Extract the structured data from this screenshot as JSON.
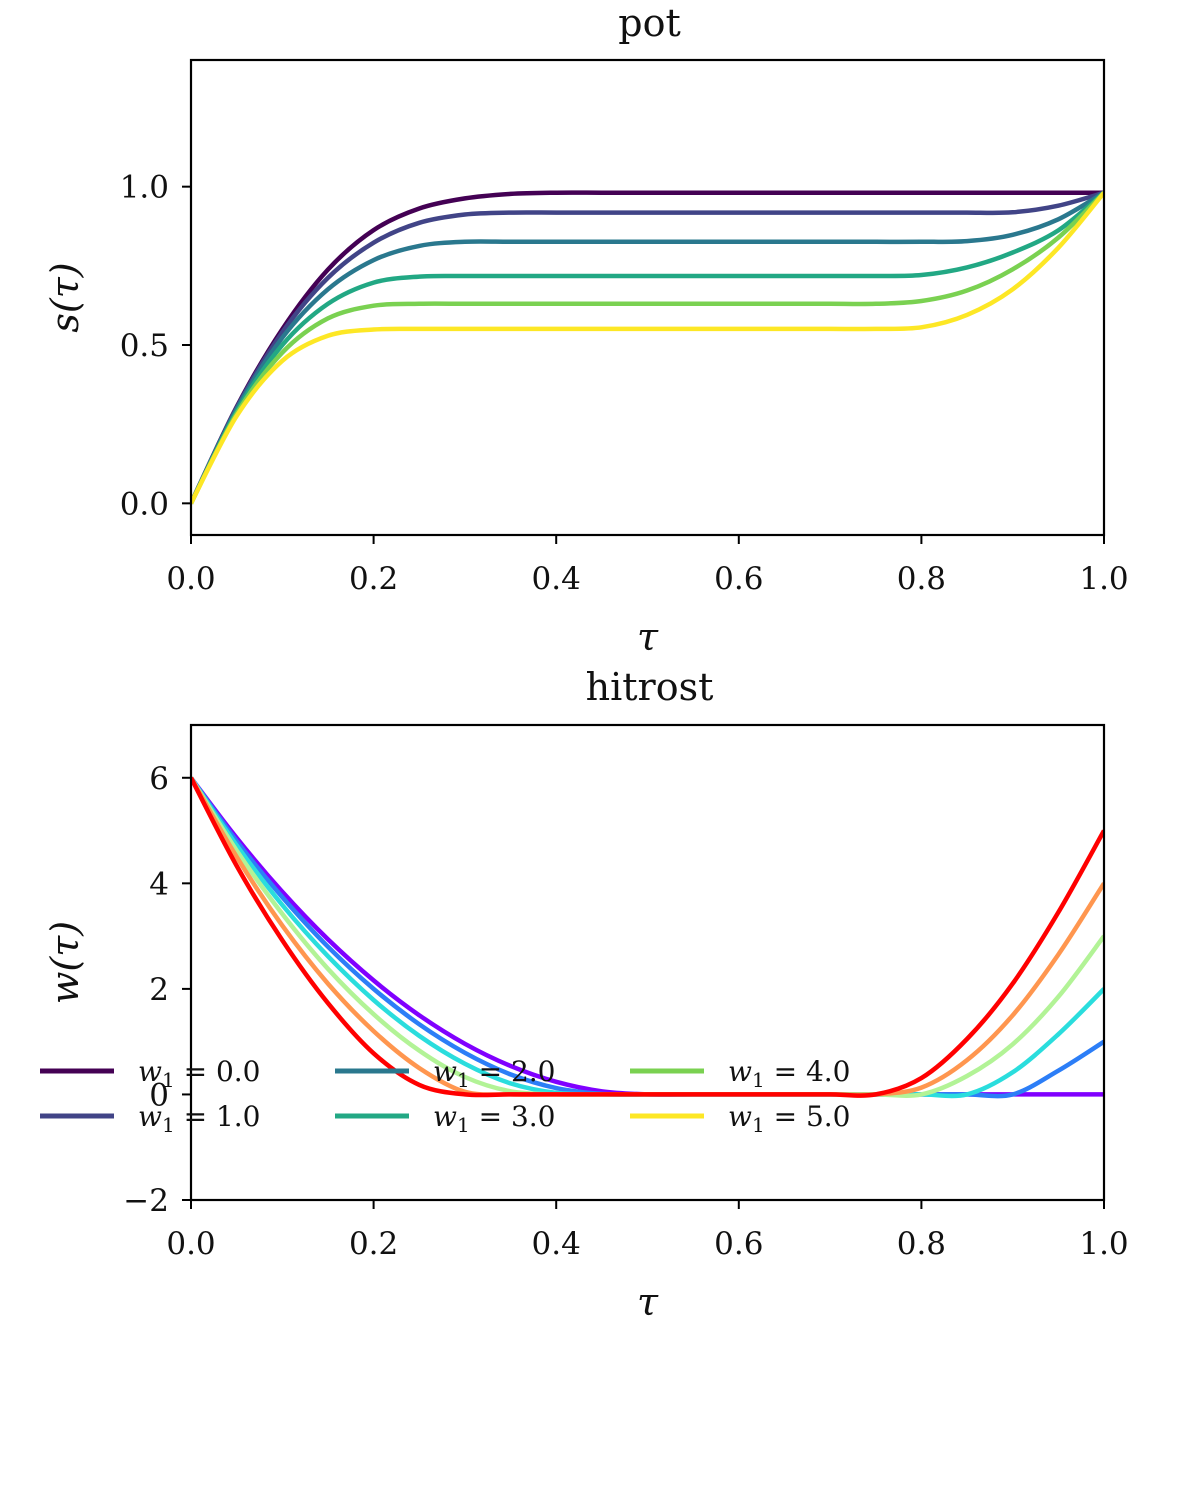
{
  "chart_data": [
    {
      "type": "line",
      "title": "pot",
      "xlabel": "τ",
      "ylabel": "s(τ)",
      "xlim": [
        0.0,
        1.0
      ],
      "ylim": [
        -0.1,
        1.4
      ],
      "xticks": [
        0.0,
        0.2,
        0.4,
        0.6,
        0.8,
        1.0
      ],
      "xtick_labels": [
        "0.0",
        "0.2",
        "0.4",
        "0.6",
        "0.8",
        "1.0"
      ],
      "yticks": [
        0.0,
        0.5,
        1.0
      ],
      "ytick_labels": [
        "0.0",
        "0.5",
        "1.0"
      ],
      "grid": false,
      "x": [
        0.0,
        0.05,
        0.1,
        0.15,
        0.2,
        0.25,
        0.3,
        0.35,
        0.4,
        0.45,
        0.5,
        0.55,
        0.6,
        0.65,
        0.7,
        0.75,
        0.8,
        0.85,
        0.9,
        0.95,
        1.0
      ],
      "series": [
        {
          "name": "w1 = 0.0",
          "color": "#440154",
          "values": [
            0.0,
            0.305,
            0.55,
            0.738,
            0.863,
            0.931,
            0.963,
            0.977,
            0.981,
            0.981,
            0.981,
            0.981,
            0.981,
            0.981,
            0.981,
            0.981,
            0.981,
            0.981,
            0.981,
            0.981,
            0.981
          ]
        },
        {
          "name": "w1 = 1.0",
          "color": "#414487",
          "values": [
            0.0,
            0.302,
            0.54,
            0.712,
            0.823,
            0.886,
            0.912,
            0.918,
            0.918,
            0.918,
            0.918,
            0.918,
            0.918,
            0.918,
            0.918,
            0.918,
            0.918,
            0.918,
            0.919,
            0.94,
            0.981
          ]
        },
        {
          "name": "w1 = 2.0",
          "color": "#2a788e",
          "values": [
            0.0,
            0.298,
            0.523,
            0.676,
            0.768,
            0.813,
            0.826,
            0.826,
            0.826,
            0.826,
            0.826,
            0.826,
            0.826,
            0.826,
            0.826,
            0.826,
            0.826,
            0.828,
            0.848,
            0.897,
            0.981
          ]
        },
        {
          "name": "w1 = 3.0",
          "color": "#22a884",
          "values": [
            0.0,
            0.29,
            0.5,
            0.63,
            0.697,
            0.716,
            0.718,
            0.718,
            0.718,
            0.718,
            0.718,
            0.718,
            0.718,
            0.718,
            0.718,
            0.718,
            0.721,
            0.745,
            0.792,
            0.862,
            0.981
          ]
        },
        {
          "name": "w1 = 4.0",
          "color": "#7ad151",
          "values": [
            0.0,
            0.283,
            0.476,
            0.584,
            0.624,
            0.63,
            0.63,
            0.63,
            0.63,
            0.63,
            0.63,
            0.63,
            0.63,
            0.63,
            0.63,
            0.63,
            0.639,
            0.672,
            0.739,
            0.839,
            0.981
          ]
        },
        {
          "name": "w1 = 5.0",
          "color": "#fde725",
          "values": [
            0.0,
            0.276,
            0.45,
            0.529,
            0.549,
            0.551,
            0.551,
            0.551,
            0.551,
            0.551,
            0.551,
            0.551,
            0.551,
            0.551,
            0.551,
            0.551,
            0.556,
            0.595,
            0.676,
            0.807,
            0.981
          ]
        }
      ]
    },
    {
      "type": "line",
      "title": "hitrost",
      "xlabel": "τ",
      "ylabel": "w(τ)",
      "xlim": [
        0.0,
        1.0
      ],
      "ylim": [
        -2,
        7
      ],
      "xticks": [
        0.0,
        0.2,
        0.4,
        0.6,
        0.8,
        1.0
      ],
      "xtick_labels": [
        "0.0",
        "0.2",
        "0.4",
        "0.6",
        "0.8",
        "1.0"
      ],
      "yticks": [
        -2,
        0,
        2,
        4,
        6
      ],
      "ytick_labels": [
        "−2",
        "0",
        "2",
        "4",
        "6"
      ],
      "grid": false,
      "x": [
        0.0,
        0.05,
        0.1,
        0.15,
        0.2,
        0.25,
        0.3,
        0.35,
        0.4,
        0.45,
        0.5,
        0.55,
        0.6,
        0.65,
        0.7,
        0.75,
        0.8,
        0.85,
        0.9,
        0.95,
        1.0
      ],
      "series": [
        {
          "color": "#8000ff",
          "values": [
            6.0,
            4.86,
            3.84,
            2.94,
            2.16,
            1.5,
            0.96,
            0.54,
            0.24,
            0.06,
            0.0,
            0.0,
            0.0,
            0.0,
            0.0,
            0.0,
            0.0,
            0.0,
            0.0,
            0.0,
            0.0
          ]
        },
        {
          "color": "#2c7ef7",
          "values": [
            6.0,
            4.8,
            3.74,
            2.8,
            2.0,
            1.33,
            0.79,
            0.38,
            0.12,
            0.01,
            0.0,
            0.0,
            0.0,
            0.0,
            0.0,
            0.0,
            0.0,
            0.0,
            0.0,
            0.45,
            1.0
          ]
        },
        {
          "color": "#2adddd",
          "values": [
            6.0,
            4.72,
            3.59,
            2.62,
            1.79,
            1.11,
            0.58,
            0.21,
            0.03,
            0.0,
            0.0,
            0.0,
            0.0,
            0.0,
            0.0,
            0.0,
            0.0,
            0.0,
            0.42,
            1.14,
            2.0
          ]
        },
        {
          "color": "#b2f396",
          "values": [
            6.0,
            4.62,
            3.42,
            2.38,
            1.52,
            0.83,
            0.33,
            0.06,
            0.0,
            0.0,
            0.0,
            0.0,
            0.0,
            0.0,
            0.0,
            0.0,
            0.0,
            0.35,
            0.95,
            1.85,
            3.0
          ]
        },
        {
          "color": "#ff964f",
          "values": [
            6.0,
            4.5,
            3.2,
            2.1,
            1.2,
            0.5,
            0.05,
            0.0,
            0.0,
            0.0,
            0.0,
            0.0,
            0.0,
            0.0,
            0.0,
            0.0,
            0.13,
            0.65,
            1.5,
            2.65,
            4.0
          ]
        },
        {
          "color": "#ff0000",
          "values": [
            6.0,
            4.33,
            2.92,
            1.73,
            0.78,
            0.18,
            0.0,
            0.0,
            0.0,
            0.0,
            0.0,
            0.0,
            0.0,
            0.0,
            0.0,
            0.0,
            0.31,
            1.05,
            2.1,
            3.45,
            5.0
          ]
        }
      ]
    }
  ],
  "legend": {
    "placement": "bottom",
    "entries": [
      {
        "var": "w",
        "sub": "1",
        "rest": " = 0.0",
        "color": "#440154"
      },
      {
        "var": "w",
        "sub": "1",
        "rest": " = 1.0",
        "color": "#414487"
      },
      {
        "var": "w",
        "sub": "1",
        "rest": " = 2.0",
        "color": "#2a788e"
      },
      {
        "var": "w",
        "sub": "1",
        "rest": " = 3.0",
        "color": "#22a884"
      },
      {
        "var": "w",
        "sub": "1",
        "rest": " = 4.0",
        "color": "#7ad151"
      },
      {
        "var": "w",
        "sub": "1",
        "rest": " = 5.0",
        "color": "#fde725"
      }
    ]
  }
}
